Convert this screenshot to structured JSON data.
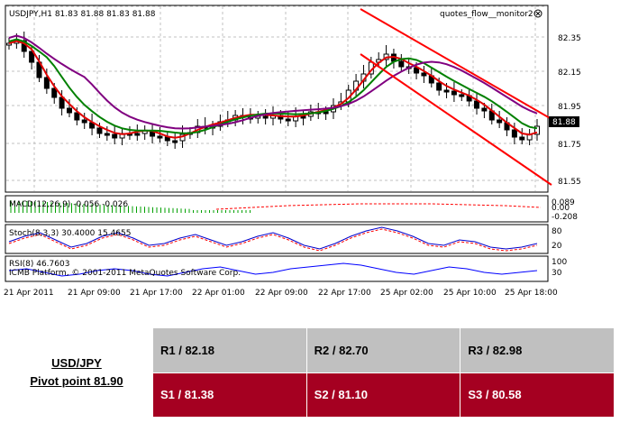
{
  "chart": {
    "header": "USDJPY,H1  81.83 81.88 81.83 81.88",
    "indicator_label": "quotes_flow__monitor2",
    "price_scale": [
      "82.35",
      "82.15",
      "81.95",
      "81.75",
      "81.55"
    ],
    "current_price": "81.88",
    "macd_label": "MACD(12,26,9) -0.056 -0.026",
    "macd_scale": [
      "0.089",
      "0.00",
      "-0.208"
    ],
    "stoch_label": "Stoch(8,3,3) 30.4000 15.4655",
    "stoch_scale": [
      "80",
      "20"
    ],
    "rsi_label": "RSI(8) 46.7603",
    "rsi_scale": [
      "100",
      "30"
    ],
    "copyright": "ICMB Platform, © 2001-2011 MetaQuotes Software Corp.",
    "time_labels": [
      "21 Apr 2011",
      "21 Apr 09:00",
      "21 Apr 17:00",
      "22 Apr 01:00",
      "22 Apr 09:00",
      "22 Apr 17:00",
      "25 Apr 02:00",
      "25 Apr 10:00",
      "25 Apr 18:00"
    ],
    "colors": {
      "ma_fast": "#e00000",
      "ma_mid": "#008000",
      "ma_slow": "#800080",
      "channel": "#ff0000",
      "up_candle": "#ffffff",
      "down_candle": "#000000",
      "grid": "#c0c0c0",
      "macd_hist": "#00a000",
      "stoch_main": "#ff0000",
      "stoch_signal": "#0000cc",
      "rsi": "#0000ff",
      "price_tag_bg": "#000000"
    }
  },
  "pivot": {
    "pair": "USD/JPY",
    "pivot_point": "Pivot point 81.90",
    "r1": "R1 / 82.18",
    "r2": "R2 / 82.70",
    "r3": "R3 / 82.98",
    "s1": "S1 / 81.38",
    "s2": "S2 / 81.10",
    "s3": "S3 / 80.58"
  }
}
